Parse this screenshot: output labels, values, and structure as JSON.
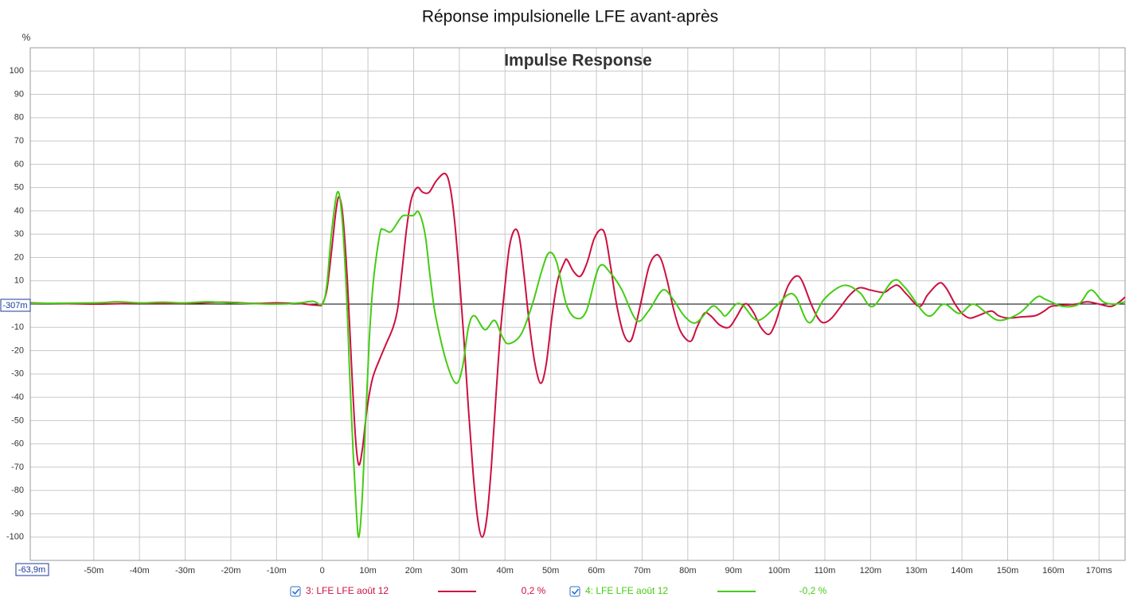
{
  "chart_data": {
    "type": "line",
    "title": "Réponse impulsionelle LFE avant-après",
    "subtitle": "Impulse Response",
    "y_label": "%",
    "cursor_labels": {
      "y": "-307m",
      "x": "-63,9m"
    },
    "xlim": [
      -63.9,
      175.7
    ],
    "ylim": [
      -110,
      110
    ],
    "xticks": [
      {
        "value": -50,
        "label": "-50m"
      },
      {
        "value": -40,
        "label": "-40m"
      },
      {
        "value": -30,
        "label": "-30m"
      },
      {
        "value": -20,
        "label": "-20m"
      },
      {
        "value": -10,
        "label": "-10m"
      },
      0,
      {
        "value": 10,
        "label": "10m"
      },
      {
        "value": 20,
        "label": "20m"
      },
      {
        "value": 30,
        "label": "30m"
      },
      {
        "value": 40,
        "label": "40m"
      },
      {
        "value": 50,
        "label": "50m"
      },
      {
        "value": 60,
        "label": "60m"
      },
      {
        "value": 70,
        "label": "70m"
      },
      {
        "value": 80,
        "label": "80m"
      },
      {
        "value": 90,
        "label": "90m"
      },
      {
        "value": 100,
        "label": "100m"
      },
      {
        "value": 110,
        "label": "110m"
      },
      {
        "value": 120,
        "label": "120m"
      },
      {
        "value": 130,
        "label": "130m"
      },
      {
        "value": 140,
        "label": "140m"
      },
      {
        "value": 150,
        "label": "150m"
      },
      {
        "value": 160,
        "label": "160m"
      },
      {
        "value": 170,
        "label": "170ms"
      }
    ],
    "yticks": [
      -100,
      -90,
      -80,
      -70,
      -60,
      -50,
      -40,
      -30,
      -20,
      -10,
      10,
      20,
      30,
      40,
      50,
      60,
      70,
      80,
      90,
      100
    ],
    "grid": true,
    "series": [
      {
        "name": "3: LFE LFE août 12",
        "legend_value": "0,2 %",
        "color": "#cc1040",
        "x": [
          -64,
          -50,
          -40,
          -30,
          -22,
          -15,
          -10,
          -5,
          -1,
          0,
          1,
          2,
          3,
          3.7,
          4.5,
          5.5,
          6.5,
          7.3,
          8,
          8.8,
          9.8,
          11,
          12.5,
          14,
          15.5,
          16.5,
          17.5,
          18.5,
          19.5,
          20.8,
          22,
          23.4,
          25,
          26.9,
          28,
          29,
          30,
          31,
          32,
          33,
          34,
          35,
          36,
          37,
          38,
          39,
          40,
          41,
          42.2,
          43.2,
          44.2,
          45.3,
          46.5,
          47.8,
          49,
          50.3,
          51.5,
          53,
          53.6,
          55,
          56.5,
          58,
          59.5,
          61,
          62,
          63.2,
          64.5,
          66,
          67.4,
          68.5,
          70,
          71.5,
          73,
          74.2,
          75.5,
          77,
          78.5,
          80.6,
          82,
          83.6,
          85,
          87,
          89,
          90.5,
          92,
          93,
          94.5,
          96,
          97.7,
          99,
          100.5,
          102,
          103.7,
          105,
          107,
          108.5,
          109.8,
          111.5,
          113.5,
          115.5,
          117.6,
          120,
          122.9,
          124.5,
          126,
          128,
          130.7,
          132.5,
          135,
          136.5,
          138.5,
          140,
          141.7,
          143.5,
          146.4,
          148,
          150,
          153,
          156,
          158,
          159.5,
          162,
          165,
          167.4,
          170,
          172.6,
          174.5,
          175.7
        ],
        "values": [
          0.5,
          0,
          0.3,
          0.3,
          0.8,
          0.3,
          0.5,
          0.2,
          -0.5,
          0,
          6,
          22,
          40,
          46,
          38,
          10,
          -30,
          -58,
          -69,
          -62,
          -45,
          -32,
          -24,
          -17,
          -10,
          -2,
          15,
          33,
          45,
          50,
          48,
          48,
          53,
          56,
          50,
          35,
          12,
          -15,
          -45,
          -72,
          -92,
          -100,
          -92,
          -70,
          -40,
          -12,
          8,
          25,
          32,
          28,
          12,
          -8,
          -25,
          -34,
          -26,
          -5,
          10,
          18,
          19,
          14,
          12,
          18,
          28,
          32,
          29,
          15,
          -1,
          -13,
          -16,
          -10,
          3,
          16,
          21,
          19,
          10,
          -3,
          -12,
          -16,
          -10,
          -4,
          -5,
          -9,
          -10,
          -6,
          -1,
          0,
          -4,
          -10,
          -13,
          -9,
          0,
          8,
          12,
          10,
          0,
          -6,
          -8,
          -6,
          -1,
          4,
          7,
          6,
          5,
          7,
          8,
          4,
          -1,
          4,
          9,
          7,
          0,
          -4,
          -6,
          -5,
          -3,
          -5,
          -6,
          -5.5,
          -5,
          -3,
          -1,
          -0.5,
          0,
          1,
          0,
          -1,
          1,
          3
        ]
      },
      {
        "name": "4: LFE LFE août 12",
        "legend_value": "-0,2 %",
        "color": "#44cc14",
        "x": [
          -64,
          -50,
          -45,
          -40,
          -35,
          -30,
          -25,
          -20,
          -10,
          -5,
          -2,
          0,
          1,
          2,
          3.3,
          4.3,
          5.3,
          6,
          6.8,
          7.5,
          8,
          8.7,
          9.5,
          10.3,
          11.2,
          12.6,
          13.4,
          15,
          16.8,
          17.8,
          19.9,
          21.1,
          22.5,
          23.6,
          24.8,
          27.2,
          29.3,
          30.7,
          32,
          33.3,
          35.6,
          37.7,
          39.4,
          40.8,
          43.5,
          46,
          48,
          49.6,
          51.3,
          53.4,
          55.5,
          57.8,
          60.6,
          63.2,
          65.6,
          68.8,
          71.4,
          74.5,
          76.8,
          79.2,
          81.8,
          85.3,
          87.1,
          88.3,
          90.6,
          92.3,
          95.3,
          99.3,
          101.9,
          103.7,
          106.6,
          109.8,
          114.1,
          117.6,
          120.5,
          124.9,
          127.6,
          132.5,
          136,
          139.4,
          142.4,
          145.5,
          148.2,
          152.5,
          156.4,
          158.3,
          162.1,
          165.6,
          168.2,
          170.9,
          173.5,
          175.7
        ],
        "values": [
          0.3,
          0.5,
          1,
          0.5,
          0.8,
          0.5,
          1,
          0.5,
          0,
          0.5,
          1.2,
          0,
          8,
          30,
          48,
          38,
          5,
          -30,
          -65,
          -90,
          -100,
          -85,
          -50,
          -15,
          10,
          30,
          32,
          31,
          36,
          38,
          38,
          39.5,
          30,
          12,
          -5,
          -25,
          -34,
          -27,
          -10,
          -5,
          -11,
          -7,
          -14,
          -17,
          -13,
          0,
          14,
          22,
          18,
          0,
          -6,
          -3,
          16,
          13,
          6,
          -7,
          -3,
          6,
          2,
          -5,
          -8,
          -1,
          -3,
          -5,
          0,
          -1,
          -7,
          -1,
          4,
          3,
          -8,
          2,
          8,
          5,
          -1,
          10,
          7,
          -5,
          0,
          -4,
          0,
          -4,
          -7,
          -4,
          3,
          2,
          -1,
          0,
          6,
          1,
          0,
          1
        ]
      }
    ]
  }
}
